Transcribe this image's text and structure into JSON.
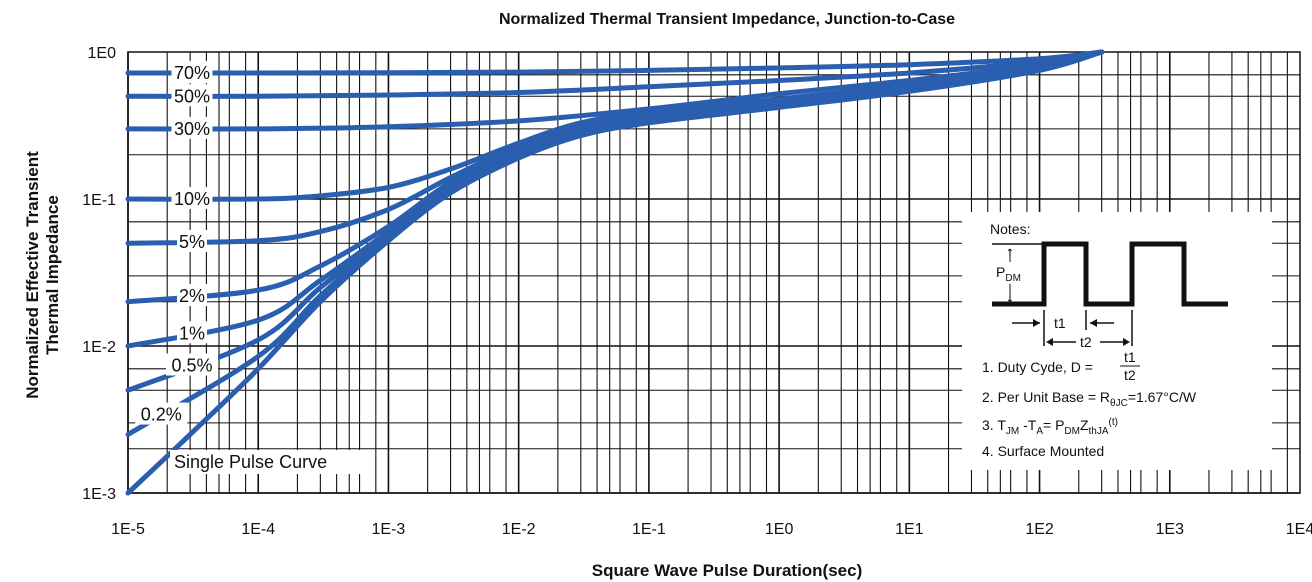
{
  "chart_data": {
    "type": "line",
    "title": "Normalized Thermal Transient Impedance, Junction-to-Case",
    "xlabel": "Square Wave Pulse Duration(sec)",
    "ylabel_line1": "Normalized Effective Transient",
    "ylabel_line2": "Thermal Impedance",
    "x_scale": "log",
    "y_scale": "log",
    "xlim": [
      1e-05,
      10000
    ],
    "ylim": [
      0.001,
      1
    ],
    "x_ticks": [
      "1E-5",
      "1E-4",
      "1E-3",
      "1E-2",
      "1E-1",
      "1E0",
      "1E1",
      "1E2",
      "1E3",
      "1E4"
    ],
    "y_ticks": [
      "1E0",
      "1E-1",
      "1E-2",
      "1E-3"
    ],
    "grid": true,
    "line_color": "#2a5fb0",
    "series": [
      {
        "name": "70%",
        "x": [
          1e-05,
          0.0001,
          0.001,
          0.01,
          0.1,
          1,
          10,
          100,
          300
        ],
        "y": [
          0.72,
          0.72,
          0.722,
          0.73,
          0.75,
          0.78,
          0.82,
          0.9,
          1.0
        ]
      },
      {
        "name": "50%",
        "x": [
          1e-05,
          0.0001,
          0.001,
          0.01,
          0.1,
          1,
          10,
          100,
          300
        ],
        "y": [
          0.5,
          0.5,
          0.51,
          0.53,
          0.58,
          0.64,
          0.72,
          0.86,
          1.0
        ]
      },
      {
        "name": "30%",
        "x": [
          1e-05,
          0.0001,
          0.001,
          0.01,
          0.1,
          1,
          10,
          100,
          300
        ],
        "y": [
          0.3,
          0.3,
          0.31,
          0.34,
          0.41,
          0.52,
          0.64,
          0.82,
          1.0
        ]
      },
      {
        "name": "10%",
        "x": [
          1e-05,
          0.0001,
          0.0003,
          0.001,
          0.003,
          0.01,
          0.03,
          0.1,
          1,
          10,
          100,
          300
        ],
        "y": [
          0.1,
          0.1,
          0.105,
          0.12,
          0.16,
          0.24,
          0.33,
          0.39,
          0.48,
          0.6,
          0.8,
          1.0
        ]
      },
      {
        "name": "5%",
        "x": [
          1e-05,
          0.0001,
          0.0003,
          0.001,
          0.003,
          0.01,
          0.03,
          0.1,
          1,
          10,
          100,
          300
        ],
        "y": [
          0.05,
          0.052,
          0.06,
          0.085,
          0.14,
          0.23,
          0.32,
          0.38,
          0.47,
          0.6,
          0.8,
          1.0
        ]
      },
      {
        "name": "2%",
        "x": [
          1e-05,
          0.0001,
          0.0003,
          0.001,
          0.003,
          0.01,
          0.03,
          0.1,
          1,
          10,
          100,
          300
        ],
        "y": [
          0.02,
          0.024,
          0.035,
          0.065,
          0.13,
          0.22,
          0.31,
          0.37,
          0.46,
          0.58,
          0.79,
          1.0
        ]
      },
      {
        "name": "1%",
        "x": [
          1e-05,
          0.0001,
          0.0003,
          0.001,
          0.003,
          0.01,
          0.03,
          0.1,
          1,
          10,
          100,
          300
        ],
        "y": [
          0.01,
          0.015,
          0.028,
          0.06,
          0.125,
          0.215,
          0.3,
          0.36,
          0.45,
          0.57,
          0.78,
          1.0
        ]
      },
      {
        "name": "0.5%",
        "x": [
          1e-05,
          0.0001,
          0.0003,
          0.001,
          0.003,
          0.01,
          0.03,
          0.1,
          1,
          10,
          100,
          300
        ],
        "y": [
          0.005,
          0.011,
          0.025,
          0.057,
          0.12,
          0.21,
          0.29,
          0.35,
          0.44,
          0.56,
          0.77,
          1.0
        ]
      },
      {
        "name": "0.2%",
        "x": [
          1e-05,
          0.0001,
          0.0003,
          0.001,
          0.003,
          0.01,
          0.03,
          0.1,
          1,
          10,
          100,
          300
        ],
        "y": [
          0.0025,
          0.0085,
          0.022,
          0.055,
          0.115,
          0.2,
          0.28,
          0.34,
          0.43,
          0.55,
          0.76,
          1.0
        ]
      },
      {
        "name": "Single Pulse Curve",
        "x": [
          1e-05,
          3e-05,
          0.0001,
          0.0003,
          0.001,
          0.003,
          0.01,
          0.03,
          0.1,
          1,
          10,
          100,
          300
        ],
        "y": [
          0.001,
          0.0025,
          0.007,
          0.02,
          0.052,
          0.11,
          0.19,
          0.27,
          0.33,
          0.42,
          0.54,
          0.75,
          1.0
        ]
      }
    ]
  },
  "notes": {
    "header": "Notes:",
    "pdm_main": "P",
    "pdm_sub": "DM",
    "t1_label": "t1",
    "t2_label": "t2",
    "note1_prefix": "1. Duty Cyde, D = ",
    "note1_num": "t1",
    "note1_den": "t2",
    "note2_prefix": "2. Per Unit Base = R",
    "note2_sub": "θJC",
    "note2_suffix": "=1.67°C/W",
    "note3_a": "3. T",
    "note3_a_sub": "JM",
    "note3_b": " -T",
    "note3_b_sub": "A",
    "note3_c": "= P",
    "note3_c_sub": "DM",
    "note3_d": "Z",
    "note3_d_sub": "thJA",
    "note3_d_sup": "(t)",
    "note4": "4. Surface Mounted"
  }
}
